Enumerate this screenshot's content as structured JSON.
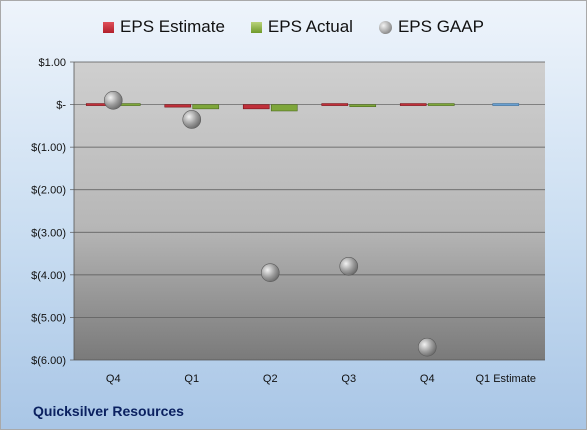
{
  "legend": {
    "estimate": "EPS Estimate",
    "actual": "EPS Actual",
    "gaap": "EPS GAAP"
  },
  "company": "Quicksilver Resources",
  "colors": {
    "estimate": "#c0303a",
    "actual": "#7ea63a",
    "gaap": "#9a9a9a",
    "forecast": "#6a9fd0"
  },
  "chart_data": {
    "type": "bar",
    "categories": [
      "Q4",
      "Q1",
      "Q2",
      "Q3",
      "Q4",
      "Q1 Estimate"
    ],
    "ylim": [
      -6,
      1
    ],
    "yticks": [
      1,
      0,
      -1,
      -2,
      -3,
      -4,
      -5,
      -6
    ],
    "ytick_labels": [
      "$1.00",
      "$-",
      "$(1.00)",
      "$(2.00)",
      "$(3.00)",
      "$(4.00)",
      "$(5.00)",
      "$(6.00)"
    ],
    "grid": true,
    "legend_position": "top",
    "series": [
      {
        "name": "EPS Estimate",
        "kind": "bar",
        "values": [
          0.0,
          -0.06,
          -0.1,
          -0.04,
          -0.02,
          null
        ]
      },
      {
        "name": "EPS Actual",
        "kind": "bar",
        "values": [
          0.0,
          -0.1,
          -0.15,
          -0.05,
          0.03,
          null
        ]
      },
      {
        "name": "EPS GAAP",
        "kind": "marker",
        "values": [
          0.1,
          -0.35,
          -3.95,
          -3.8,
          -5.7,
          null
        ]
      },
      {
        "name": "Q1 Estimate",
        "kind": "bar",
        "values": [
          null,
          null,
          null,
          null,
          null,
          -0.03
        ]
      }
    ]
  }
}
